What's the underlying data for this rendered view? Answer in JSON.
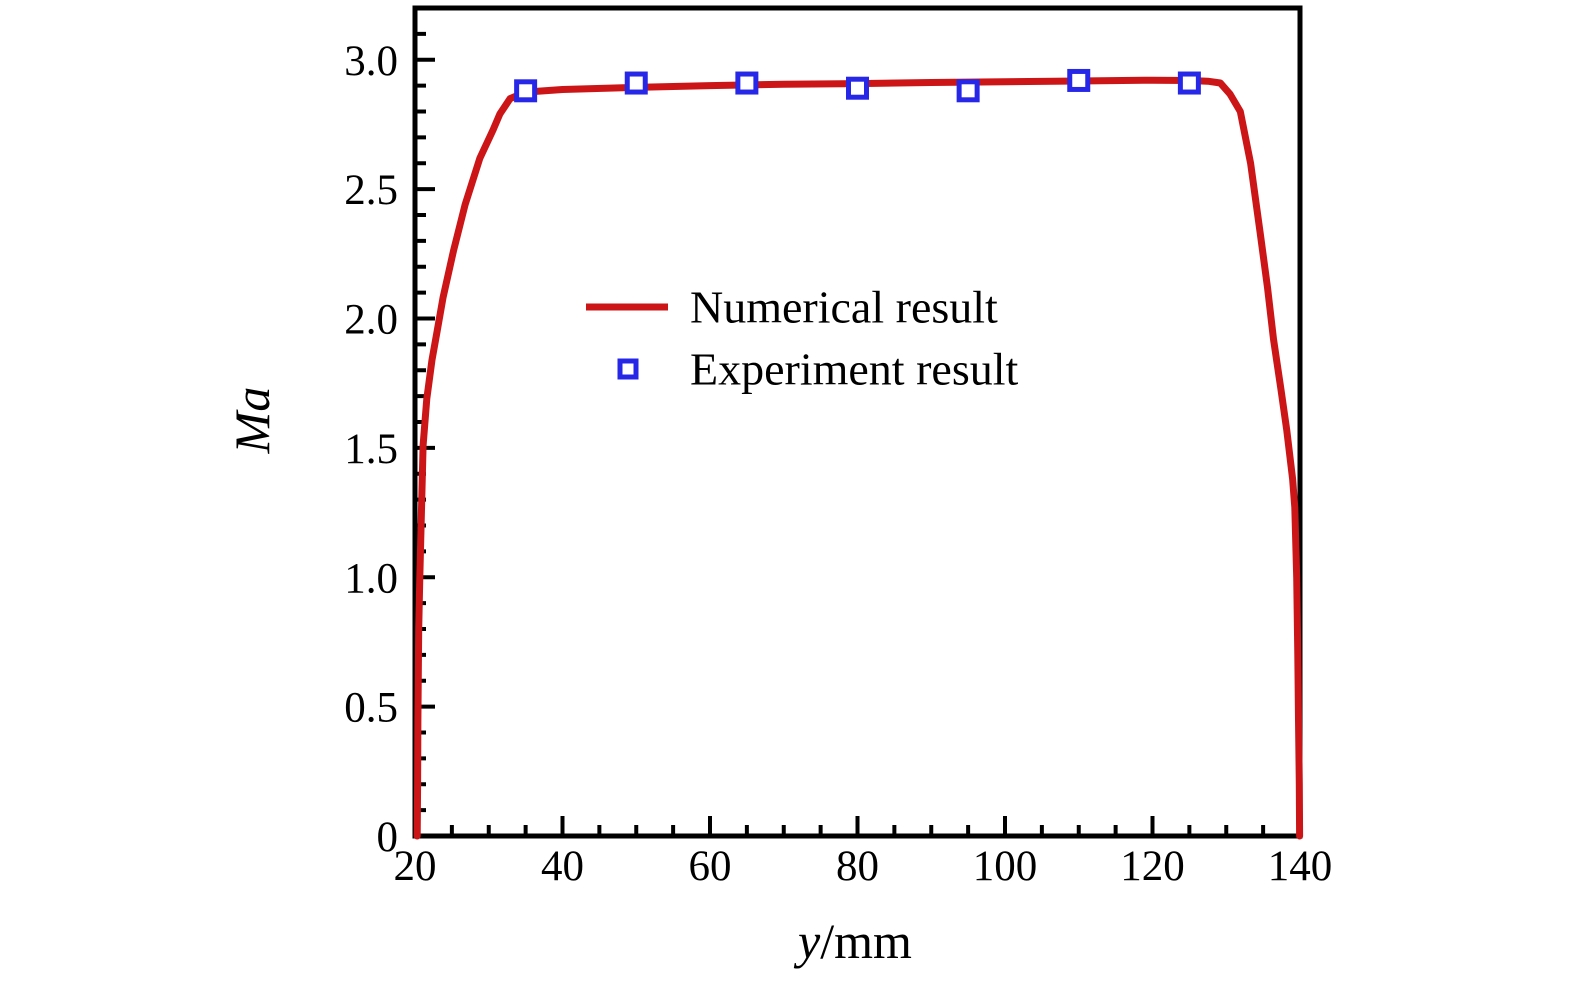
{
  "figure": {
    "background": "#ffffff"
  },
  "chart_data": {
    "type": "line",
    "title": "",
    "xlabel_var": "y",
    "xlabel_unit": "/mm",
    "ylabel": "Ma",
    "xlim": [
      20,
      140
    ],
    "ylim": [
      0,
      3.2
    ],
    "x_major_ticks": [
      20,
      40,
      60,
      80,
      100,
      120,
      140
    ],
    "x_minor_step": 5,
    "y_major_ticks": [
      0,
      0.5,
      1.0,
      1.5,
      2.0,
      2.5,
      3.0
    ],
    "y_minor_step": 0.1,
    "grid": false,
    "frame_color": "#000000",
    "legend_position": "upper-center-inside",
    "series": [
      {
        "name": "Numerical result",
        "type": "line",
        "color": "#cb1517",
        "points": [
          [
            20.3,
            0
          ],
          [
            20.35,
            0.2
          ],
          [
            20.4,
            0.45
          ],
          [
            20.5,
            0.8
          ],
          [
            20.65,
            1.0
          ],
          [
            20.8,
            1.17
          ],
          [
            21.1,
            1.51
          ],
          [
            21.6,
            1.69
          ],
          [
            22.3,
            1.84
          ],
          [
            23.0,
            1.95
          ],
          [
            23.8,
            2.08
          ],
          [
            25.2,
            2.26
          ],
          [
            26.8,
            2.44
          ],
          [
            28.8,
            2.62
          ],
          [
            30.6,
            2.73
          ],
          [
            31.5,
            2.79
          ],
          [
            32.9,
            2.85
          ],
          [
            35,
            2.875
          ],
          [
            40,
            2.885
          ],
          [
            50,
            2.893
          ],
          [
            60,
            2.9
          ],
          [
            70,
            2.905
          ],
          [
            80,
            2.908
          ],
          [
            90,
            2.912
          ],
          [
            100,
            2.915
          ],
          [
            110,
            2.918
          ],
          [
            120,
            2.921
          ],
          [
            125,
            2.92
          ],
          [
            127.5,
            2.917
          ],
          [
            129.2,
            2.91
          ],
          [
            130.5,
            2.868
          ],
          [
            131.9,
            2.8
          ],
          [
            133.3,
            2.6
          ],
          [
            134.6,
            2.33
          ],
          [
            135.6,
            2.12
          ],
          [
            136.4,
            1.92
          ],
          [
            137.4,
            1.73
          ],
          [
            138.2,
            1.57
          ],
          [
            139.0,
            1.38
          ],
          [
            139.3,
            1.27
          ],
          [
            139.55,
            1.0
          ],
          [
            139.7,
            0.7
          ],
          [
            139.8,
            0.45
          ],
          [
            139.9,
            0.2
          ],
          [
            139.95,
            0
          ]
        ]
      },
      {
        "name": "Experiment result",
        "type": "scatter",
        "marker": "open-square",
        "color": "#2727e8",
        "points": [
          [
            35,
            2.88
          ],
          [
            50,
            2.91
          ],
          [
            65,
            2.91
          ],
          [
            80,
            2.89
          ],
          [
            95,
            2.88
          ],
          [
            110,
            2.92
          ],
          [
            125,
            2.91
          ]
        ]
      }
    ]
  }
}
